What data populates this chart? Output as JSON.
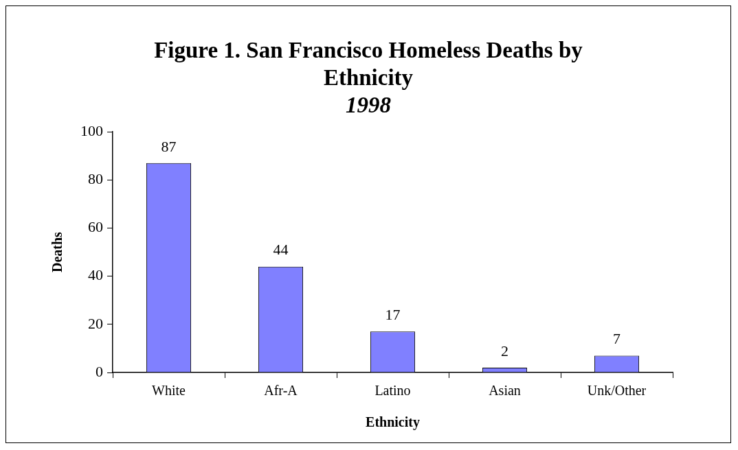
{
  "chart_data": {
    "type": "bar",
    "title": "Figure 1.  San Francisco Homeless Deaths by Ethnicity",
    "subtitle": "1998",
    "xlabel": "Ethnicity",
    "ylabel": "Deaths",
    "categories": [
      "White",
      "Afr-A",
      "Latino",
      "Asian",
      "Unk/Other"
    ],
    "values": [
      87,
      44,
      17,
      2,
      7
    ],
    "color": "#8080ff",
    "ylim": [
      0,
      100
    ],
    "yticks": [
      0,
      20,
      40,
      60,
      80,
      100
    ],
    "data_labels": true
  }
}
